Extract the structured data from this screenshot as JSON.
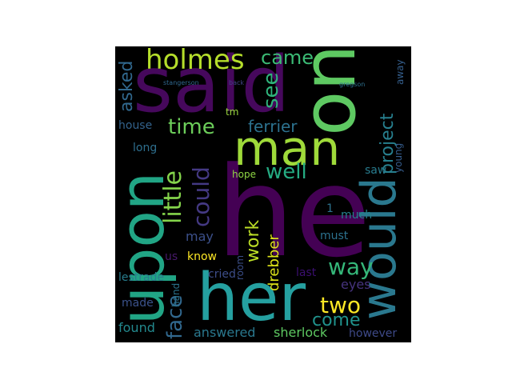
{
  "wordcloud": {
    "background": "#000000",
    "words": [
      {
        "text": "he",
        "color": "#440154"
      },
      {
        "text": "said",
        "color": "#46085c"
      },
      {
        "text": "one",
        "color": "#5ec962"
      },
      {
        "text": "upon",
        "color": "#21a585"
      },
      {
        "text": "her",
        "color": "#25a0a0"
      },
      {
        "text": "man",
        "color": "#9fda3a"
      },
      {
        "text": "would",
        "color": "#2a788e"
      },
      {
        "text": "holmes",
        "color": "#b5de2b"
      },
      {
        "text": "came",
        "color": "#3bbb75"
      },
      {
        "text": "see",
        "color": "#2fb47c"
      },
      {
        "text": "project",
        "color": "#277f8e"
      },
      {
        "text": "asked",
        "color": "#31688e"
      },
      {
        "text": "time",
        "color": "#6ccd5a"
      },
      {
        "text": "ferrier",
        "color": "#2c718e"
      },
      {
        "text": "well",
        "color": "#25ab82"
      },
      {
        "text": "little",
        "color": "#84d44b"
      },
      {
        "text": "could",
        "color": "#443983"
      },
      {
        "text": "face",
        "color": "#31688e"
      },
      {
        "text": "work",
        "color": "#bddf26"
      },
      {
        "text": "way",
        "color": "#35b779"
      },
      {
        "text": "two",
        "color": "#fde725"
      },
      {
        "text": "come",
        "color": "#20928c"
      },
      {
        "text": "drebber",
        "color": "#dde318"
      },
      {
        "text": "house",
        "color": "#33638d"
      },
      {
        "text": "long",
        "color": "#2e6f8e"
      },
      {
        "text": "may",
        "color": "#3c508b"
      },
      {
        "text": "us",
        "color": "#481a6c"
      },
      {
        "text": "know",
        "color": "#fde725"
      },
      {
        "text": "lestrade",
        "color": "#287d8e"
      },
      {
        "text": "made",
        "color": "#3b528b"
      },
      {
        "text": "found",
        "color": "#23898e"
      },
      {
        "text": "answered",
        "color": "#2a788e"
      },
      {
        "text": "sherlock",
        "color": "#5ec962"
      },
      {
        "text": "however",
        "color": "#3e4a89"
      },
      {
        "text": "eyes",
        "color": "#46337e"
      },
      {
        "text": "last",
        "color": "#3b0f70"
      },
      {
        "text": "cried",
        "color": "#3d4e8a"
      },
      {
        "text": "hand",
        "color": "#2b748e"
      },
      {
        "text": "room",
        "color": "#3c4f8a"
      },
      {
        "text": "must",
        "color": "#2c718e"
      },
      {
        "text": "much",
        "color": "#26828e"
      },
      {
        "text": "saw",
        "color": "#287c8e"
      },
      {
        "text": "young",
        "color": "#365d8d"
      },
      {
        "text": "away",
        "color": "#355f8d"
      },
      {
        "text": "hope",
        "color": "#8fd744"
      },
      {
        "text": "tm",
        "color": "#9ad83d"
      },
      {
        "text": "1",
        "color": "#2c728e"
      },
      {
        "text": "stangerson",
        "color": "#30688e"
      },
      {
        "text": "back",
        "color": "#414487"
      },
      {
        "text": "gregson",
        "color": "#2d708e"
      }
    ]
  }
}
